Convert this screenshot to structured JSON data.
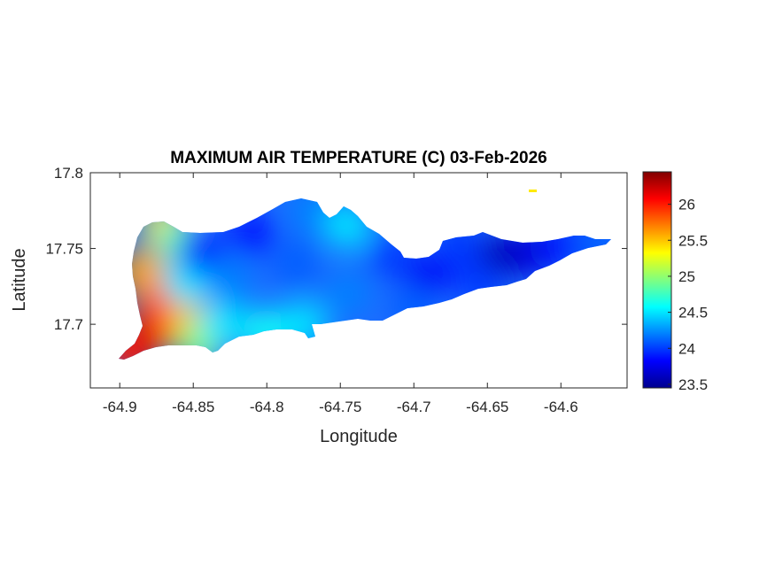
{
  "chart_data": {
    "type": "heatmap",
    "title": "MAXIMUM AIR TEMPERATURE (C) 03-Feb-2026",
    "xlabel": "Longitude",
    "ylabel": "Latitude",
    "xlim": [
      -64.92,
      -64.555
    ],
    "ylim": [
      17.658,
      17.8
    ],
    "x_ticks": [
      -64.9,
      -64.85,
      -64.8,
      -64.75,
      -64.7,
      -64.65,
      -64.6
    ],
    "x_tick_labels": [
      "-64.9",
      "-64.85",
      "-64.8",
      "-64.75",
      "-64.7",
      "-64.65",
      "-64.6"
    ],
    "y_ticks": [
      17.7,
      17.75,
      17.8
    ],
    "y_tick_labels": [
      "17.7",
      "17.75",
      "17.8"
    ],
    "colorbar": {
      "range": [
        23.45,
        26.45
      ],
      "ticks": [
        23.5,
        24,
        24.5,
        25,
        25.5,
        26
      ],
      "tick_labels": [
        "23.5",
        "24",
        "24.5",
        "25",
        "25.5",
        "26"
      ],
      "colormap": "jet"
    },
    "grid": false,
    "field_points": [
      {
        "lon": -64.882,
        "lat": 17.69,
        "value": 26.4
      },
      {
        "lon": -64.895,
        "lat": 17.682,
        "value": 26.0
      },
      {
        "lon": -64.868,
        "lat": 17.7,
        "value": 26.0
      },
      {
        "lon": -64.875,
        "lat": 17.712,
        "value": 25.9
      },
      {
        "lon": -64.852,
        "lat": 17.7,
        "value": 25.5
      },
      {
        "lon": -64.885,
        "lat": 17.735,
        "value": 25.6
      },
      {
        "lon": -64.87,
        "lat": 17.765,
        "value": 25.4
      },
      {
        "lon": -64.845,
        "lat": 17.688,
        "value": 25.0
      },
      {
        "lon": -64.86,
        "lat": 17.755,
        "value": 24.8
      },
      {
        "lon": -64.855,
        "lat": 17.728,
        "value": 24.5
      },
      {
        "lon": -64.83,
        "lat": 17.7,
        "value": 24.5
      },
      {
        "lon": -64.8,
        "lat": 17.695,
        "value": 24.6
      },
      {
        "lon": -64.775,
        "lat": 17.7,
        "value": 24.5
      },
      {
        "lon": -64.845,
        "lat": 17.748,
        "value": 23.9
      },
      {
        "lon": -64.825,
        "lat": 17.73,
        "value": 24.2
      },
      {
        "lon": -64.81,
        "lat": 17.76,
        "value": 23.9
      },
      {
        "lon": -64.78,
        "lat": 17.74,
        "value": 24.1
      },
      {
        "lon": -64.77,
        "lat": 17.775,
        "value": 24.2
      },
      {
        "lon": -64.745,
        "lat": 17.765,
        "value": 24.5
      },
      {
        "lon": -64.745,
        "lat": 17.72,
        "value": 24.2
      },
      {
        "lon": -64.715,
        "lat": 17.745,
        "value": 24.0
      },
      {
        "lon": -64.69,
        "lat": 17.732,
        "value": 23.8
      },
      {
        "lon": -64.7,
        "lat": 17.71,
        "value": 24.1
      },
      {
        "lon": -64.66,
        "lat": 17.74,
        "value": 23.9
      },
      {
        "lon": -64.64,
        "lat": 17.745,
        "value": 23.6
      },
      {
        "lon": -64.62,
        "lat": 17.748,
        "value": 23.7
      },
      {
        "lon": -64.655,
        "lat": 17.725,
        "value": 24.0
      },
      {
        "lon": -64.67,
        "lat": 17.755,
        "value": 24.0
      },
      {
        "lon": -64.6,
        "lat": 17.752,
        "value": 23.9
      },
      {
        "lon": -64.575,
        "lat": 17.752,
        "value": 24.1
      }
    ]
  }
}
